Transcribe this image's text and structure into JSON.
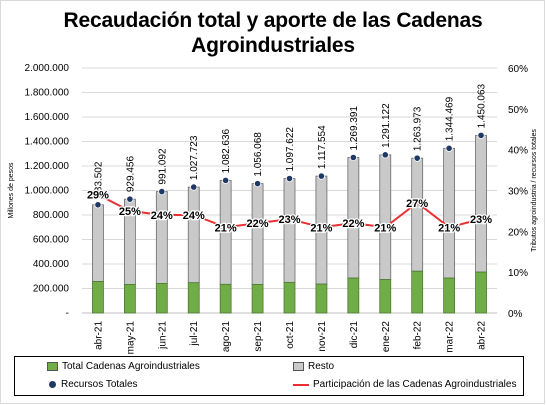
{
  "title_line1": "Recaudación total y aporte de las Cadenas",
  "title_line2": "Agroindustriales",
  "chart_data": {
    "type": "bar",
    "stacked": true,
    "title": "Recaudación total y aporte de las Cadenas Agroindustriales",
    "categories": [
      "abr-21",
      "may-21",
      "jun-21",
      "jul-21",
      "ago-21",
      "sep-21",
      "oct-21",
      "nov-21",
      "dic-21",
      "ene-22",
      "feb-22",
      "mar-22",
      "abr-22"
    ],
    "ylabel": "Millones de pesos",
    "y2label": "Tributos agroindustria / recursos totales",
    "ylim": [
      0,
      2000000
    ],
    "y2lim": [
      0,
      60
    ],
    "yticks": [
      "-",
      "200.000",
      "400.000",
      "600.000",
      "800.000",
      "1.000.000",
      "1.200.000",
      "1.400.000",
      "1.600.000",
      "1.800.000",
      "2.000.000"
    ],
    "y2ticks": [
      "0%",
      "10%",
      "20%",
      "30%",
      "40%",
      "50%",
      "60%"
    ],
    "grid": true,
    "legend": "bottom",
    "series": [
      {
        "name": "Total Cadenas Agroindustriales",
        "type": "bar",
        "color": "#70ad47",
        "values": [
          257000,
          233000,
          241000,
          247000,
          234000,
          233000,
          250000,
          236000,
          285000,
          273000,
          341000,
          285000,
          334000
        ]
      },
      {
        "name": "Resto",
        "type": "bar",
        "color": "#c9c9c9",
        "values": [
          626502,
          696456,
          750092,
          780723,
          848636,
          823068,
          847622,
          881554,
          984391,
          1018122,
          922973,
          1059469,
          1116063
        ]
      },
      {
        "name": "Recursos Totales",
        "type": "marker",
        "color": "#1f3864",
        "values": [
          883502,
          929456,
          991092,
          1027723,
          1082636,
          1056068,
          1097622,
          1117554,
          1269391,
          1291122,
          1263973,
          1344469,
          1450063
        ],
        "labels": [
          "883.502",
          "929.456",
          "991.092",
          "1.027.723",
          "1.082.636",
          "1.056.068",
          "1.097.622",
          "1.117.554",
          "1.269.391",
          "1.291.122",
          "1.263.973",
          "1.344.469",
          "1.450.063"
        ]
      },
      {
        "name": "Participación de las Cadenas Agroindustriales",
        "type": "line",
        "axis": "right",
        "color": "#e83030",
        "values": [
          29,
          25,
          24,
          24,
          21,
          22,
          23,
          21,
          22,
          21,
          27,
          21,
          23
        ],
        "labels": [
          "29%",
          "25%",
          "24%",
          "24%",
          "21%",
          "22%",
          "23%",
          "21%",
          "22%",
          "21%",
          "27%",
          "21%",
          "23%"
        ]
      }
    ]
  }
}
